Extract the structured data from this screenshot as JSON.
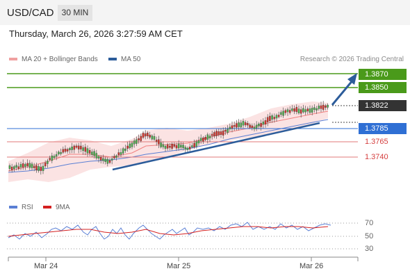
{
  "header": {
    "pair": "USD/CAD",
    "timeframe": "30 MIN"
  },
  "datetime": "Thursday, March 26, 2026 3:27:59 AM CET",
  "legend": [
    {
      "label": "MA 20 + Bollinger Bands",
      "color": "#f08080"
    },
    {
      "label": "MA 50",
      "color": "#2c5c9a"
    }
  ],
  "credit": "Research © 2026 Trading Central",
  "price_labels": {
    "r2": "1.3870",
    "r1": "1.3850",
    "last": "1.3822",
    "pivot": "1.3785",
    "s1": "1.3765",
    "s2": "1.3740"
  },
  "colors": {
    "resistance": "#4a9a1a",
    "last": "#333333",
    "pivot": "#2f6fd4",
    "support": "#d43d3d",
    "trend": "#2c5c9a"
  },
  "rsi_legend": [
    {
      "label": "RSI",
      "color": "#5a7fd4"
    },
    {
      "label": "9MA",
      "color": "#d42020"
    }
  ],
  "rsi_levels": [
    "70",
    "50",
    "30"
  ],
  "x_labels": [
    "Mar 24",
    "Mar 25",
    "Mar 26"
  ]
}
